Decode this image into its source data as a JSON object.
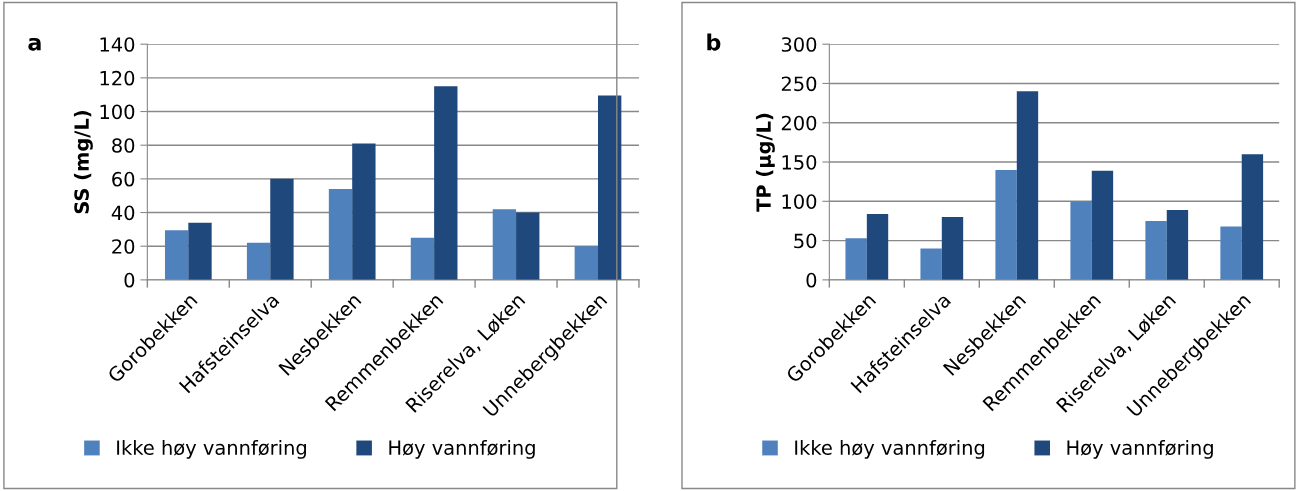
{
  "chart_data": [
    {
      "type": "bar",
      "annotations": [
        "a"
      ],
      "ylabel": "SS (mg/L)",
      "categories": [
        "Gorobekken",
        "Hafsteinselva",
        "Nesbekken",
        "Remmenbekken",
        "Riserelva, Løken",
        "Unnebergbekken"
      ],
      "series": [
        {
          "name": "Ikke høy vannføring",
          "color": "#4f81bd",
          "values": [
            29.5,
            22,
            54,
            25,
            42,
            20
          ]
        },
        {
          "name": "Høy vannføring",
          "color": "#1f497d",
          "values": [
            34,
            60,
            81,
            115,
            40,
            109.5
          ]
        }
      ],
      "ylim": [
        0,
        140
      ],
      "yticks": [
        0,
        20,
        40,
        60,
        80,
        100,
        120,
        140
      ],
      "grid": "y",
      "legend": "bottom"
    },
    {
      "type": "bar",
      "annotations": [
        "b"
      ],
      "ylabel": "TP (µg/L)",
      "categories": [
        "Gorobekken",
        "Hafsteinselva",
        "Nesbekken",
        "Remmenbekken",
        "Riserelva, Løken",
        "Unnebergbekken"
      ],
      "series": [
        {
          "name": "Ikke høy vannføring",
          "color": "#4f81bd",
          "values": [
            53,
            40,
            140,
            100,
            75,
            68
          ]
        },
        {
          "name": "Høy vannføring",
          "color": "#1f497d",
          "values": [
            84,
            80,
            240,
            139,
            89,
            160
          ]
        }
      ],
      "ylim": [
        0,
        300
      ],
      "yticks": [
        0,
        50,
        100,
        150,
        200,
        250,
        300
      ],
      "grid": "y",
      "legend": "bottom"
    }
  ]
}
